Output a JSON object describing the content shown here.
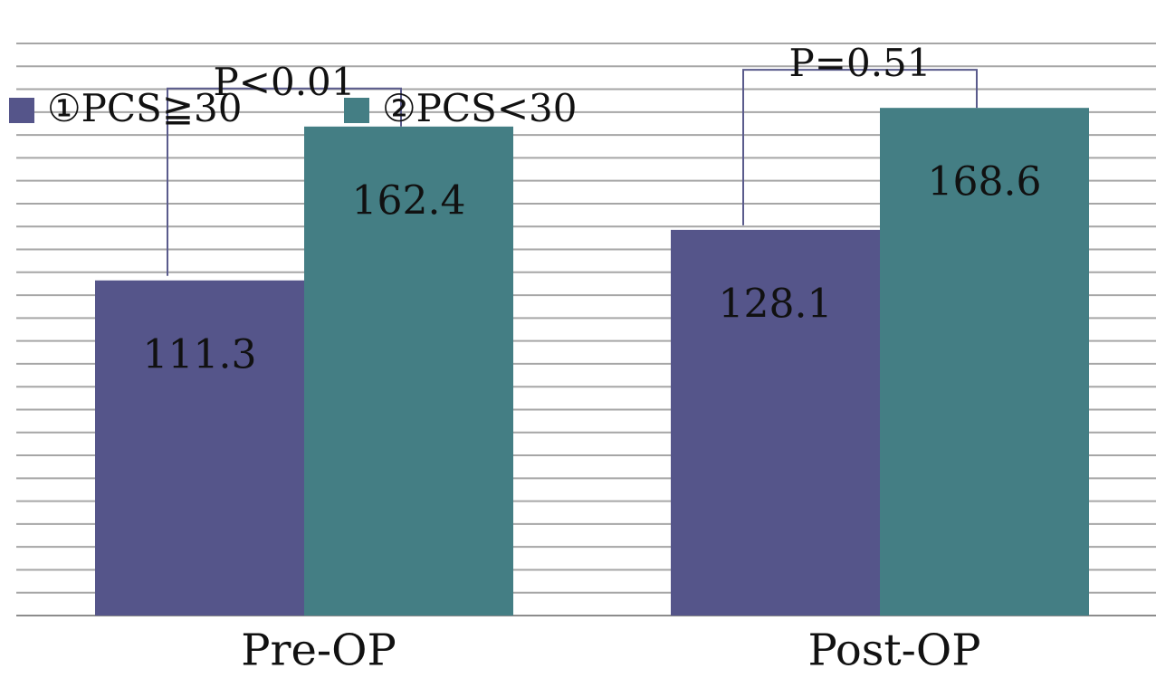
{
  "chart_data": {
    "type": "bar",
    "title": "",
    "xlabel": "",
    "ylabel": "",
    "categories": [
      "Pre-OP",
      "Post-OP"
    ],
    "series": [
      {
        "name": "①PCS≧30",
        "values": [
          111.3,
          128.1
        ]
      },
      {
        "name": "②PCS<30",
        "values": [
          162.4,
          168.6
        ]
      }
    ],
    "ylim": [
      0,
      190
    ],
    "grid": true,
    "legend_position": "top-left",
    "colors": {
      "series_1": "#55558a",
      "series_2": "#447e84",
      "bracket": "#5a5b8c",
      "grid": "#a6a6a6"
    },
    "annotations": [
      {
        "text": "P<0.01",
        "category_index": 0
      },
      {
        "text": "P=0.51",
        "category_index": 1
      }
    ]
  }
}
